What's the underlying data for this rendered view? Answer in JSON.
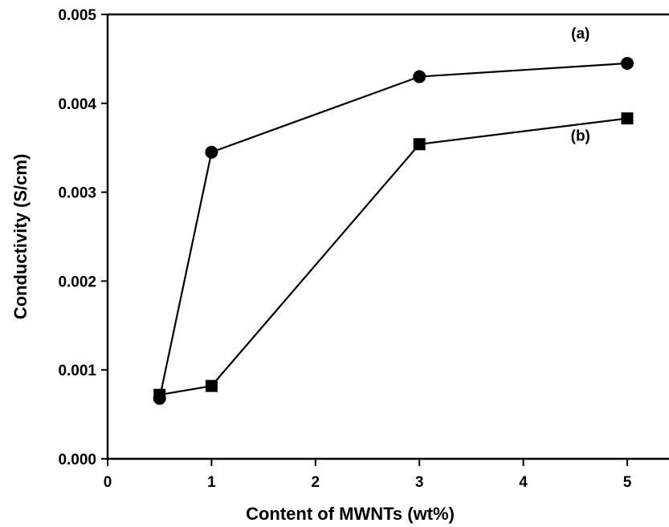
{
  "chart_data": {
    "type": "line",
    "xlabel": "Content of MWNTs (wt%)",
    "ylabel": "Conductivity (S/cm)",
    "xlim": [
      0,
      5.4
    ],
    "ylim": [
      0,
      0.005
    ],
    "xticks": [
      0,
      1,
      2,
      3,
      4,
      5
    ],
    "xtick_labels": [
      "0",
      "1",
      "2",
      "3",
      "4",
      "5"
    ],
    "yticks": [
      0,
      0.001,
      0.002,
      0.003,
      0.004,
      0.005
    ],
    "ytick_labels": [
      "0.000",
      "0.001",
      "0.002",
      "0.003",
      "0.004",
      "0.005"
    ],
    "grid": false,
    "series": [
      {
        "name": "(a)",
        "marker": "circle",
        "color": "#000000",
        "x": [
          0.5,
          1,
          3,
          5
        ],
        "y": [
          0.00068,
          0.00345,
          0.0043,
          0.00445
        ]
      },
      {
        "name": "(b)",
        "marker": "square",
        "color": "#000000",
        "x": [
          0.5,
          1,
          3,
          5
        ],
        "y": [
          0.00072,
          0.00082,
          0.00354,
          0.00383
        ]
      }
    ],
    "annotations": [
      {
        "text": "(a)",
        "x": 4.55,
        "y": 0.00473
      },
      {
        "text": "(b)",
        "x": 4.55,
        "y": 0.00358
      }
    ]
  }
}
